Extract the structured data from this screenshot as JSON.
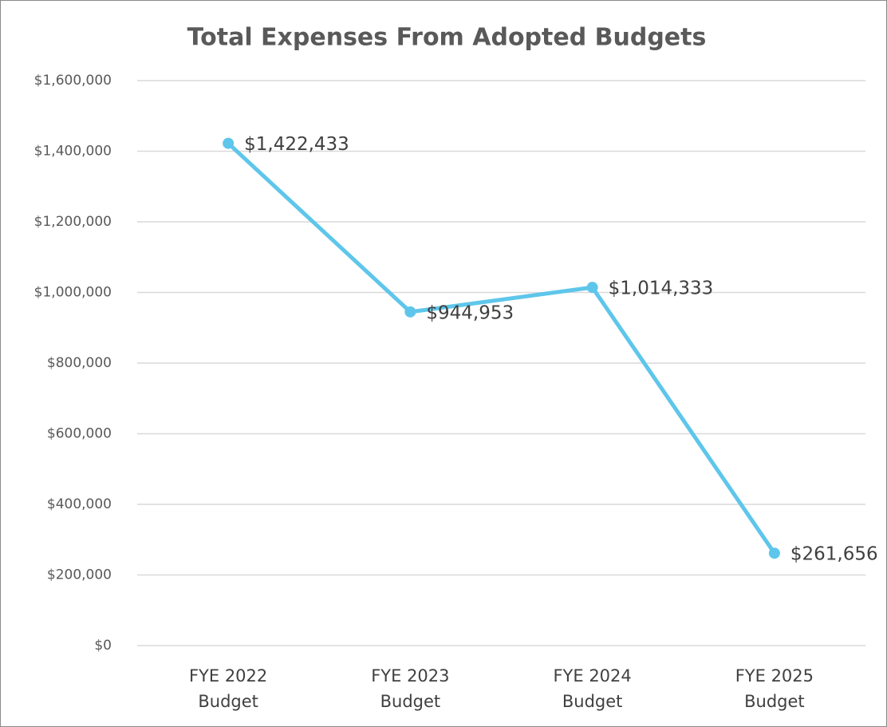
{
  "chart_data": {
    "type": "line",
    "title": "Total Expenses From Adopted Budgets",
    "categories": [
      "FYE 2022 Budget",
      "FYE 2023 Budget",
      "FYE 2024 Budget",
      "FYE 2025 Budget"
    ],
    "series": [
      {
        "name": "Total Expenses",
        "color": "#5ec6ea",
        "values": [
          1422433,
          944953,
          1014333,
          261656
        ],
        "value_labels": [
          "$1,422,433",
          "$944,953",
          "$1,014,333",
          "$261,656"
        ]
      }
    ],
    "ylim": [
      0,
      1600000
    ],
    "yticks": [
      {
        "value": 0,
        "label": "$0"
      },
      {
        "value": 200000,
        "label": "$200,000"
      },
      {
        "value": 400000,
        "label": "$400,000"
      },
      {
        "value": 600000,
        "label": "$600,000"
      },
      {
        "value": 800000,
        "label": "$800,000"
      },
      {
        "value": 1000000,
        "label": "$1,000,000"
      },
      {
        "value": 1200000,
        "label": "$1,200,000"
      },
      {
        "value": 1400000,
        "label": "$1,400,000"
      },
      {
        "value": 1600000,
        "label": "$1,600,000"
      }
    ],
    "grid": true
  }
}
